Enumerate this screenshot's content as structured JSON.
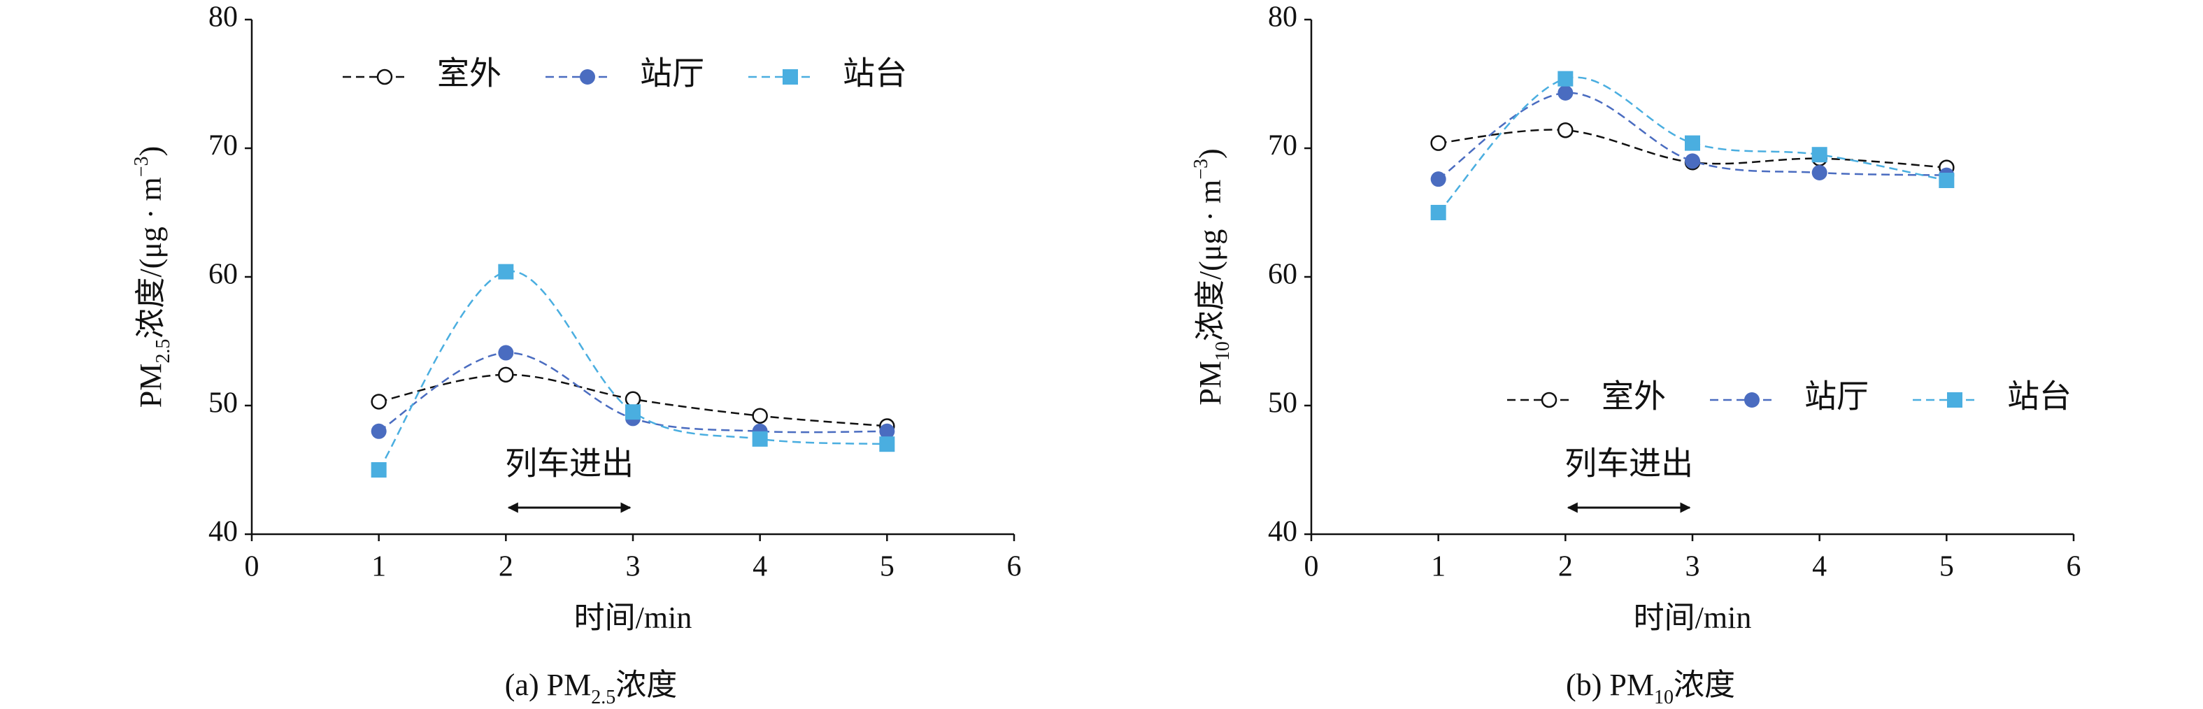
{
  "chart_data": [
    {
      "type": "line",
      "xlim": [
        0,
        6
      ],
      "ylim": [
        40,
        80
      ],
      "xticks": [
        0,
        1,
        2,
        3,
        4,
        5,
        6
      ],
      "yticks": [
        40,
        50,
        60,
        70,
        80
      ],
      "x": [
        1,
        2,
        3,
        4,
        5
      ],
      "legend": "upper",
      "xlabel": "时间/min",
      "ylabel": {
        "main": "PM",
        "sub": "2.5",
        "rest": "浓度/(μg · m",
        "sup": "−3",
        "end": ")"
      },
      "caption": {
        "prefix": "(a) PM",
        "sub": "2.5",
        "suffix": "浓度"
      },
      "annotation": {
        "text": "列车进出",
        "x": [
          2,
          3
        ]
      },
      "series": [
        {
          "name": "室外",
          "color": "#111111",
          "marker": "open-circle",
          "values": [
            50.3,
            52.4,
            50.5,
            49.2,
            48.4
          ]
        },
        {
          "name": "站厅",
          "color": "#4a6cc0",
          "marker": "circle",
          "values": [
            48,
            54.1,
            49,
            48,
            48
          ]
        },
        {
          "name": "站台",
          "color": "#4aaee0",
          "marker": "square",
          "values": [
            45,
            60.4,
            49.5,
            47.4,
            47
          ]
        }
      ]
    },
    {
      "type": "line",
      "xlim": [
        0,
        6
      ],
      "ylim": [
        40,
        80
      ],
      "xticks": [
        0,
        1,
        2,
        3,
        4,
        5,
        6
      ],
      "yticks": [
        40,
        50,
        60,
        70,
        80
      ],
      "x": [
        1,
        2,
        3,
        4,
        5
      ],
      "legend": "lower",
      "xlabel": "时间/min",
      "ylabel": {
        "main": "PM",
        "sub": "10",
        "rest": "浓度/(μg · m",
        "sup": "−3",
        "end": ")"
      },
      "caption": {
        "prefix": "(b) PM",
        "sub": "10",
        "suffix": "浓度"
      },
      "annotation": {
        "text": "列车进出",
        "x": [
          2,
          3
        ]
      },
      "series": [
        {
          "name": "室外",
          "color": "#111111",
          "marker": "open-circle",
          "values": [
            70.4,
            71.4,
            68.9,
            69.2,
            68.5
          ]
        },
        {
          "name": "站厅",
          "color": "#4a6cc0",
          "marker": "circle",
          "values": [
            67.6,
            74.3,
            69,
            68.1,
            67.9
          ]
        },
        {
          "name": "站台",
          "color": "#4aaee0",
          "marker": "square",
          "values": [
            65,
            75.4,
            70.4,
            69.5,
            67.5
          ]
        }
      ]
    }
  ]
}
